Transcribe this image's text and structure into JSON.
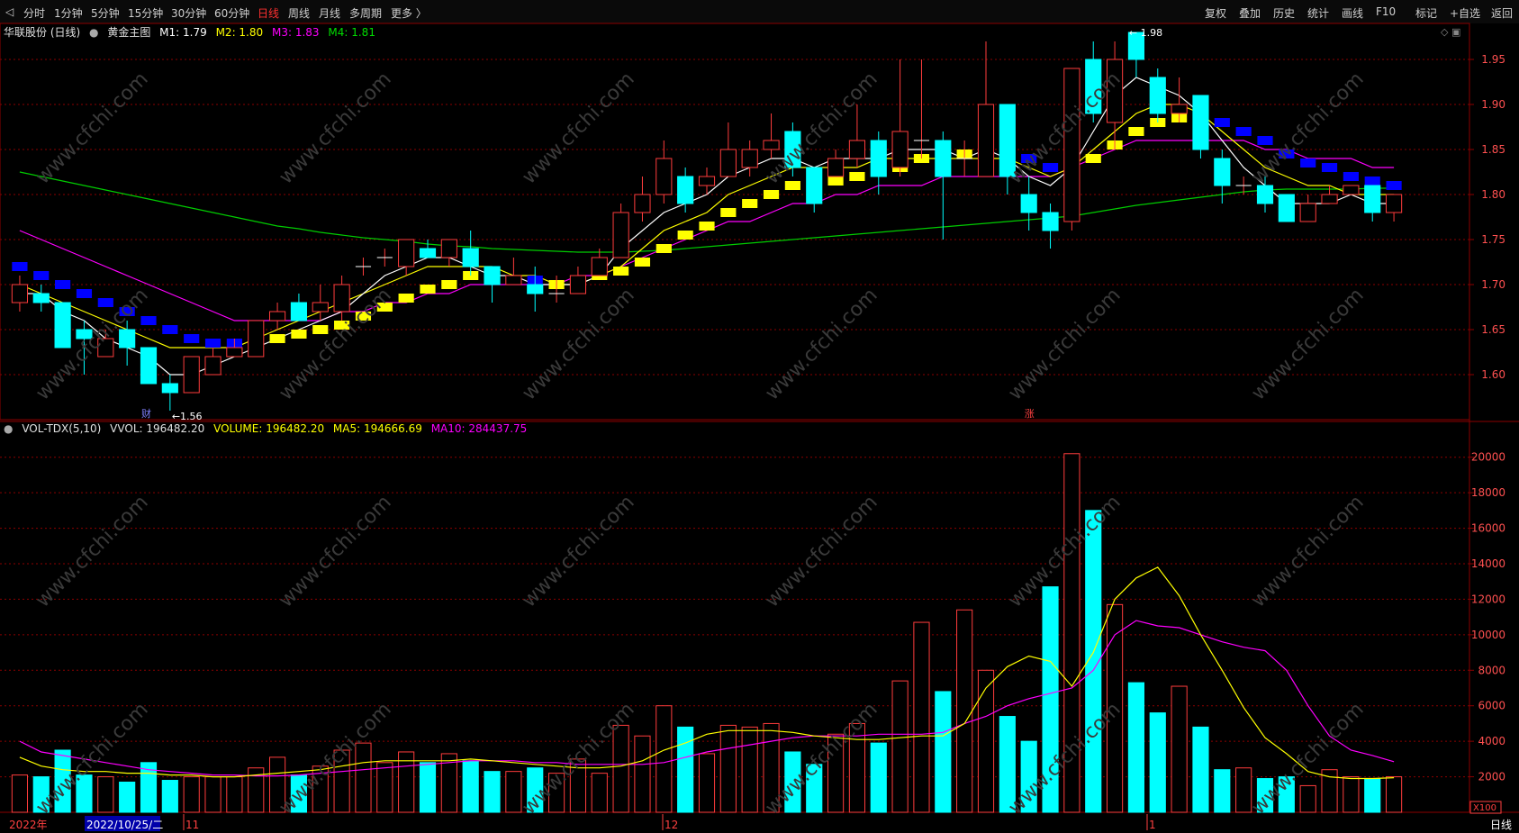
{
  "toolbar": {
    "left_tabs": [
      "分时",
      "1分钟",
      "5分钟",
      "15分钟",
      "30分钟",
      "60分钟",
      "日线",
      "周线",
      "月线",
      "多周期",
      "更多 〉"
    ],
    "active_tab": "日线",
    "right_tabs": [
      "复权",
      "叠加",
      "历史",
      "统计",
      "画线",
      "F10",
      "标记",
      "+自选",
      "返回"
    ]
  },
  "main_legend": {
    "stock": "华联股份 (日线)",
    "indicator": "黄金主图",
    "m1": "M1: 1.79",
    "m2": "M2: 1.80",
    "m3": "M3: 1.83",
    "m4": "M4: 1.81"
  },
  "vol_legend": {
    "name": "VOL-TDX(5,10)",
    "vvol": "VVOL: 196482.20",
    "volume": "VOLUME: 196482.20",
    "ma5": "MA5: 194666.69",
    "ma10": "MA10: 284437.75"
  },
  "annotations": {
    "high": "1.98",
    "low": "1.56",
    "cai": "财",
    "zhang": "涨"
  },
  "watermark": "www.cfchi.com",
  "bottom_bar": {
    "year": "2022年",
    "cursor_date": "2022/10/25/二",
    "m11": "11",
    "m12": "12",
    "m1": "1",
    "period": "日线",
    "scale": "X100"
  },
  "colors": {
    "up": "#ff3c3c",
    "down": "#00ffff",
    "m1": "#ffffff",
    "m2": "#ffff00",
    "m3": "#ff00ff",
    "m4": "#00cc00",
    "grid": "#8b0000"
  },
  "chart_data": [
    {
      "type": "candlestick",
      "title": "华联股份 (日线)",
      "ylim": [
        1.55,
        1.99
      ],
      "y_ticks": [
        1.6,
        1.65,
        1.7,
        1.75,
        1.8,
        1.85,
        1.9,
        1.95
      ],
      "candles": [
        [
          1.68,
          1.7,
          1.71,
          1.67
        ],
        [
          1.69,
          1.68,
          1.7,
          1.67
        ],
        [
          1.68,
          1.63,
          1.68,
          1.63
        ],
        [
          1.65,
          1.64,
          1.66,
          1.6
        ],
        [
          1.62,
          1.64,
          1.65,
          1.62
        ],
        [
          1.65,
          1.63,
          1.66,
          1.61
        ],
        [
          1.63,
          1.59,
          1.63,
          1.59
        ],
        [
          1.59,
          1.58,
          1.6,
          1.56
        ],
        [
          1.58,
          1.62,
          1.62,
          1.58
        ],
        [
          1.6,
          1.62,
          1.63,
          1.6
        ],
        [
          1.62,
          1.63,
          1.64,
          1.62
        ],
        [
          1.62,
          1.66,
          1.66,
          1.62
        ],
        [
          1.66,
          1.67,
          1.68,
          1.65
        ],
        [
          1.68,
          1.66,
          1.69,
          1.66
        ],
        [
          1.67,
          1.68,
          1.7,
          1.66
        ],
        [
          1.67,
          1.7,
          1.71,
          1.66
        ],
        [
          1.72,
          1.72,
          1.73,
          1.71
        ],
        [
          1.73,
          1.73,
          1.74,
          1.72
        ],
        [
          1.72,
          1.75,
          1.75,
          1.71
        ],
        [
          1.74,
          1.73,
          1.75,
          1.73
        ],
        [
          1.73,
          1.75,
          1.75,
          1.72
        ],
        [
          1.74,
          1.72,
          1.76,
          1.71
        ],
        [
          1.72,
          1.7,
          1.72,
          1.68
        ],
        [
          1.7,
          1.71,
          1.73,
          1.7
        ],
        [
          1.7,
          1.69,
          1.72,
          1.67
        ],
        [
          1.69,
          1.69,
          1.71,
          1.68
        ],
        [
          1.69,
          1.71,
          1.72,
          1.69
        ],
        [
          1.71,
          1.73,
          1.74,
          1.71
        ],
        [
          1.73,
          1.78,
          1.79,
          1.73
        ],
        [
          1.78,
          1.8,
          1.82,
          1.77
        ],
        [
          1.8,
          1.84,
          1.86,
          1.79
        ],
        [
          1.82,
          1.79,
          1.83,
          1.78
        ],
        [
          1.81,
          1.82,
          1.83,
          1.8
        ],
        [
          1.82,
          1.85,
          1.88,
          1.82
        ],
        [
          1.83,
          1.85,
          1.86,
          1.82
        ],
        [
          1.85,
          1.86,
          1.89,
          1.84
        ],
        [
          1.87,
          1.83,
          1.88,
          1.82
        ],
        [
          1.83,
          1.79,
          1.83,
          1.78
        ],
        [
          1.82,
          1.84,
          1.85,
          1.82
        ],
        [
          1.84,
          1.86,
          1.9,
          1.83
        ],
        [
          1.86,
          1.82,
          1.87,
          1.8
        ],
        [
          1.83,
          1.87,
          1.95,
          1.82
        ],
        [
          1.86,
          1.86,
          1.95,
          1.84
        ],
        [
          1.86,
          1.82,
          1.87,
          1.75
        ],
        [
          1.84,
          1.84,
          1.86,
          1.82
        ],
        [
          1.82,
          1.9,
          1.97,
          1.82
        ],
        [
          1.9,
          1.82,
          1.9,
          1.8
        ],
        [
          1.8,
          1.78,
          1.82,
          1.76
        ],
        [
          1.78,
          1.76,
          1.79,
          1.74
        ],
        [
          1.77,
          1.94,
          1.94,
          1.76
        ],
        [
          1.95,
          1.89,
          1.97,
          1.88
        ],
        [
          1.88,
          1.95,
          1.97,
          1.85
        ],
        [
          1.98,
          1.95,
          1.98,
          1.93
        ],
        [
          1.93,
          1.89,
          1.94,
          1.88
        ],
        [
          1.89,
          1.9,
          1.93,
          1.88
        ],
        [
          1.91,
          1.85,
          1.91,
          1.84
        ],
        [
          1.84,
          1.81,
          1.85,
          1.79
        ],
        [
          1.81,
          1.81,
          1.82,
          1.8
        ],
        [
          1.81,
          1.79,
          1.82,
          1.78
        ],
        [
          1.8,
          1.77,
          1.8,
          1.77
        ],
        [
          1.77,
          1.79,
          1.8,
          1.77
        ],
        [
          1.79,
          1.8,
          1.81,
          1.79
        ],
        [
          1.8,
          1.81,
          1.81,
          1.8
        ],
        [
          1.81,
          1.78,
          1.81,
          1.77
        ],
        [
          1.78,
          1.8,
          1.8,
          1.77
        ]
      ],
      "gold_markers": [
        {
          "i": 0,
          "v": 1.72,
          "c": "blue"
        },
        {
          "i": 1,
          "v": 1.71,
          "c": "blue"
        },
        {
          "i": 2,
          "v": 1.7,
          "c": "blue"
        },
        {
          "i": 3,
          "v": 1.69,
          "c": "blue"
        },
        {
          "i": 4,
          "v": 1.68,
          "c": "blue"
        },
        {
          "i": 5,
          "v": 1.67,
          "c": "blue"
        },
        {
          "i": 6,
          "v": 1.66,
          "c": "blue"
        },
        {
          "i": 7,
          "v": 1.65,
          "c": "blue"
        },
        {
          "i": 8,
          "v": 1.64,
          "c": "blue"
        },
        {
          "i": 9,
          "v": 1.635,
          "c": "blue"
        },
        {
          "i": 10,
          "v": 1.635,
          "c": "blue"
        },
        {
          "i": 11,
          "v": 1.635,
          "c": "yellow"
        },
        {
          "i": 12,
          "v": 1.64,
          "c": "yellow"
        },
        {
          "i": 13,
          "v": 1.645,
          "c": "yellow"
        },
        {
          "i": 14,
          "v": 1.65,
          "c": "yellow"
        },
        {
          "i": 15,
          "v": 1.655,
          "c": "yellow"
        },
        {
          "i": 16,
          "v": 1.665,
          "c": "yellow"
        },
        {
          "i": 17,
          "v": 1.675,
          "c": "yellow"
        },
        {
          "i": 18,
          "v": 1.685,
          "c": "yellow"
        },
        {
          "i": 19,
          "v": 1.695,
          "c": "yellow"
        },
        {
          "i": 20,
          "v": 1.7,
          "c": "yellow"
        },
        {
          "i": 21,
          "v": 1.71,
          "c": "yellow"
        },
        {
          "i": 22,
          "v": 1.71,
          "c": "blue"
        },
        {
          "i": 23,
          "v": 1.705,
          "c": "blue"
        },
        {
          "i": 24,
          "v": 1.705,
          "c": "blue"
        },
        {
          "i": 25,
          "v": 1.7,
          "c": "yellow"
        },
        {
          "i": 26,
          "v": 1.705,
          "c": "yellow"
        },
        {
          "i": 27,
          "v": 1.71,
          "c": "yellow"
        },
        {
          "i": 28,
          "v": 1.715,
          "c": "yellow"
        },
        {
          "i": 29,
          "v": 1.725,
          "c": "yellow"
        },
        {
          "i": 30,
          "v": 1.74,
          "c": "yellow"
        },
        {
          "i": 31,
          "v": 1.755,
          "c": "yellow"
        },
        {
          "i": 32,
          "v": 1.765,
          "c": "yellow"
        },
        {
          "i": 33,
          "v": 1.78,
          "c": "yellow"
        },
        {
          "i": 34,
          "v": 1.79,
          "c": "yellow"
        },
        {
          "i": 35,
          "v": 1.8,
          "c": "yellow"
        },
        {
          "i": 36,
          "v": 1.81,
          "c": "yellow"
        },
        {
          "i": 37,
          "v": 1.815,
          "c": "yellow"
        },
        {
          "i": 38,
          "v": 1.815,
          "c": "yellow"
        },
        {
          "i": 39,
          "v": 1.82,
          "c": "yellow"
        },
        {
          "i": 40,
          "v": 1.825,
          "c": "yellow"
        },
        {
          "i": 41,
          "v": 1.83,
          "c": "yellow"
        },
        {
          "i": 42,
          "v": 1.84,
          "c": "yellow"
        },
        {
          "i": 43,
          "v": 1.84,
          "c": "yellow"
        },
        {
          "i": 44,
          "v": 1.845,
          "c": "yellow"
        },
        {
          "i": 45,
          "v": 1.845,
          "c": "yellow"
        },
        {
          "i": 46,
          "v": 1.84,
          "c": "blue"
        },
        {
          "i": 47,
          "v": 1.84,
          "c": "blue"
        },
        {
          "i": 48,
          "v": 1.83,
          "c": "blue"
        },
        {
          "i": 49,
          "v": 1.83,
          "c": "yellow"
        },
        {
          "i": 50,
          "v": 1.84,
          "c": "yellow"
        },
        {
          "i": 51,
          "v": 1.855,
          "c": "yellow"
        },
        {
          "i": 52,
          "v": 1.87,
          "c": "yellow"
        },
        {
          "i": 53,
          "v": 1.88,
          "c": "yellow"
        },
        {
          "i": 54,
          "v": 1.885,
          "c": "yellow"
        },
        {
          "i": 55,
          "v": 1.885,
          "c": "blue"
        },
        {
          "i": 56,
          "v": 1.88,
          "c": "blue"
        },
        {
          "i": 57,
          "v": 1.87,
          "c": "blue"
        },
        {
          "i": 58,
          "v": 1.86,
          "c": "blue"
        },
        {
          "i": 59,
          "v": 1.845,
          "c": "blue"
        },
        {
          "i": 60,
          "v": 1.835,
          "c": "blue"
        },
        {
          "i": 61,
          "v": 1.83,
          "c": "blue"
        },
        {
          "i": 62,
          "v": 1.82,
          "c": "blue"
        },
        {
          "i": 63,
          "v": 1.815,
          "c": "blue"
        },
        {
          "i": 64,
          "v": 1.81,
          "c": "blue"
        }
      ],
      "m1": [
        1.69,
        1.69,
        1.67,
        1.66,
        1.64,
        1.63,
        1.62,
        1.6,
        1.6,
        1.61,
        1.62,
        1.63,
        1.64,
        1.65,
        1.66,
        1.67,
        1.69,
        1.71,
        1.72,
        1.73,
        1.73,
        1.72,
        1.71,
        1.71,
        1.7,
        1.7,
        1.7,
        1.71,
        1.74,
        1.76,
        1.78,
        1.79,
        1.8,
        1.82,
        1.83,
        1.84,
        1.84,
        1.83,
        1.84,
        1.84,
        1.84,
        1.85,
        1.85,
        1.85,
        1.84,
        1.85,
        1.84,
        1.82,
        1.81,
        1.83,
        1.87,
        1.91,
        1.93,
        1.92,
        1.91,
        1.89,
        1.86,
        1.83,
        1.81,
        1.79,
        1.79,
        1.79,
        1.8,
        1.79,
        1.79
      ],
      "m2": [
        1.7,
        1.69,
        1.68,
        1.67,
        1.66,
        1.65,
        1.64,
        1.63,
        1.63,
        1.63,
        1.63,
        1.64,
        1.65,
        1.66,
        1.67,
        1.68,
        1.69,
        1.7,
        1.71,
        1.72,
        1.72,
        1.72,
        1.72,
        1.71,
        1.71,
        1.7,
        1.7,
        1.71,
        1.72,
        1.74,
        1.76,
        1.77,
        1.78,
        1.8,
        1.81,
        1.82,
        1.83,
        1.83,
        1.83,
        1.83,
        1.84,
        1.84,
        1.84,
        1.84,
        1.84,
        1.84,
        1.84,
        1.83,
        1.82,
        1.83,
        1.85,
        1.87,
        1.89,
        1.9,
        1.9,
        1.89,
        1.87,
        1.85,
        1.83,
        1.82,
        1.81,
        1.81,
        1.8,
        1.8,
        1.8
      ],
      "m3": [
        1.76,
        1.75,
        1.74,
        1.73,
        1.72,
        1.71,
        1.7,
        1.69,
        1.68,
        1.67,
        1.66,
        1.66,
        1.66,
        1.66,
        1.66,
        1.67,
        1.67,
        1.68,
        1.68,
        1.69,
        1.69,
        1.7,
        1.7,
        1.7,
        1.7,
        1.7,
        1.71,
        1.71,
        1.72,
        1.73,
        1.74,
        1.75,
        1.76,
        1.77,
        1.77,
        1.78,
        1.79,
        1.79,
        1.8,
        1.8,
        1.81,
        1.81,
        1.81,
        1.82,
        1.82,
        1.82,
        1.82,
        1.82,
        1.82,
        1.83,
        1.84,
        1.85,
        1.86,
        1.86,
        1.86,
        1.86,
        1.86,
        1.86,
        1.85,
        1.85,
        1.84,
        1.84,
        1.84,
        1.83,
        1.83
      ],
      "m4": [
        1.825,
        1.82,
        1.815,
        1.81,
        1.805,
        1.8,
        1.795,
        1.79,
        1.785,
        1.78,
        1.775,
        1.77,
        1.765,
        1.762,
        1.758,
        1.755,
        1.752,
        1.75,
        1.748,
        1.745,
        1.743,
        1.742,
        1.74,
        1.739,
        1.738,
        1.737,
        1.736,
        1.736,
        1.736,
        1.737,
        1.738,
        1.74,
        1.742,
        1.744,
        1.746,
        1.748,
        1.75,
        1.752,
        1.754,
        1.756,
        1.758,
        1.76,
        1.762,
        1.764,
        1.766,
        1.768,
        1.77,
        1.772,
        1.774,
        1.776,
        1.78,
        1.784,
        1.788,
        1.791,
        1.794,
        1.797,
        1.8,
        1.803,
        1.805,
        1.806,
        1.806,
        1.806,
        1.806,
        1.807,
        1.807
      ]
    },
    {
      "type": "bar",
      "title": "VOL-TDX(5,10)",
      "unit": "X100",
      "ylim": [
        0,
        21000
      ],
      "y_ticks": [
        2000,
        4000,
        6000,
        8000,
        10000,
        12000,
        14000,
        16000,
        18000,
        20000
      ],
      "volumes": [
        2100,
        2000,
        3500,
        2100,
        2000,
        1700,
        2800,
        1800,
        2000,
        2000,
        2000,
        2500,
        3100,
        2100,
        2600,
        3500,
        3900,
        2800,
        3400,
        2800,
        3300,
        2900,
        2300,
        2300,
        2500,
        2200,
        3000,
        2200,
        4900,
        4300,
        6000,
        4800,
        3300,
        4900,
        4800,
        5000,
        3400,
        2700,
        4400,
        5000,
        3900,
        7400,
        10700,
        6800,
        11400,
        8000,
        5400,
        4000,
        12700,
        20200,
        17000,
        11700,
        7300,
        5600,
        7100,
        4800,
        2400,
        2500,
        1900,
        2000,
        1500,
        2400,
        2000,
        1900,
        2000
      ],
      "ma5": [
        3100,
        2600,
        2400,
        2300,
        2300,
        2200,
        2200,
        2100,
        2100,
        2000,
        2000,
        2100,
        2200,
        2300,
        2400,
        2600,
        2800,
        2900,
        2900,
        2900,
        2900,
        3000,
        2900,
        2800,
        2700,
        2600,
        2500,
        2500,
        2600,
        2900,
        3500,
        3900,
        4400,
        4600,
        4600,
        4600,
        4500,
        4300,
        4200,
        4100,
        4100,
        4200,
        4300,
        4300,
        5000,
        7000,
        8200,
        8800,
        8500,
        7100,
        9000,
        12000,
        13200,
        13800,
        12200,
        10000,
        8000,
        5900,
        4200,
        3300,
        2300,
        2000,
        1900,
        1900,
        1950
      ],
      "ma10": [
        4000,
        3400,
        3200,
        3000,
        2800,
        2600,
        2400,
        2300,
        2200,
        2100,
        2100,
        2050,
        2050,
        2100,
        2200,
        2300,
        2400,
        2500,
        2600,
        2700,
        2800,
        2900,
        2900,
        2900,
        2800,
        2800,
        2700,
        2700,
        2700,
        2700,
        2800,
        3100,
        3400,
        3600,
        3800,
        4000,
        4200,
        4300,
        4300,
        4300,
        4400,
        4400,
        4400,
        4500,
        5000,
        5400,
        6000,
        6400,
        6700,
        7000,
        8000,
        10000,
        10800,
        10500,
        10400,
        10000,
        9600,
        9300,
        9100,
        8000,
        6000,
        4300,
        3500,
        3200,
        2850
      ]
    }
  ]
}
